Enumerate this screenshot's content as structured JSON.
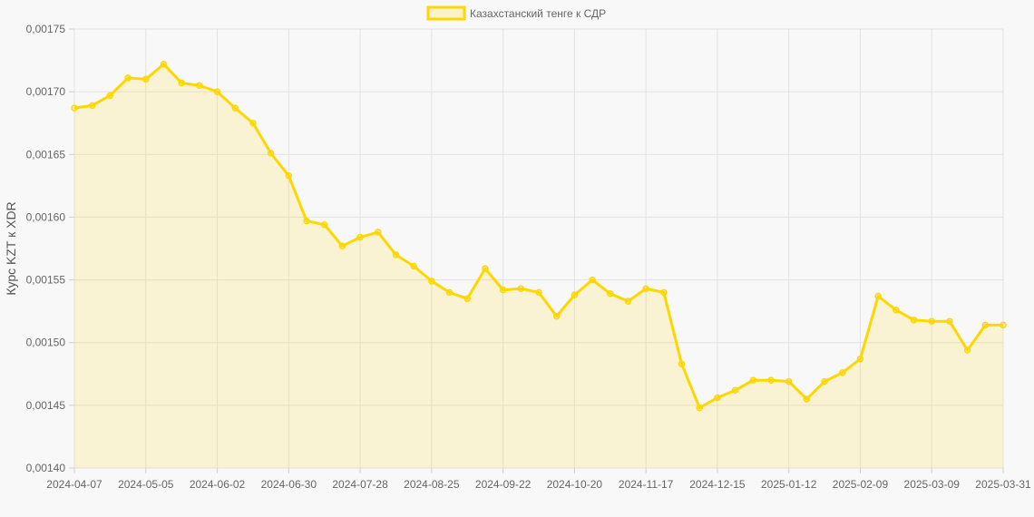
{
  "chart_data": {
    "type": "area",
    "title": "",
    "xlabel": "",
    "ylabel": "Курс KZT к XDR",
    "ylim": [
      0.0014,
      0.00175
    ],
    "yticks": [
      "0,00140",
      "0,00145",
      "0,00150",
      "0,00155",
      "0,00160",
      "0,00165",
      "0,00170",
      "0,00175"
    ],
    "xticks": [
      "2024-04-07",
      "2024-05-05",
      "2024-06-02",
      "2024-06-30",
      "2024-07-28",
      "2024-08-25",
      "2024-09-22",
      "2024-10-20",
      "2024-11-17",
      "2024-12-15",
      "2025-01-12",
      "2025-02-09",
      "2025-03-09",
      "2025-03-31"
    ],
    "grid": true,
    "legend": "top-center",
    "series": [
      {
        "name": "Казахстанский тенге к СДР",
        "color": "#FFD700",
        "values": [
          0.001687,
          0.001689,
          0.001697,
          0.001711,
          0.00171,
          0.001722,
          0.001707,
          0.001705,
          0.0017,
          0.001687,
          0.001675,
          0.001651,
          0.001633,
          0.001597,
          0.001594,
          0.001577,
          0.001584,
          0.001588,
          0.00157,
          0.001561,
          0.001549,
          0.00154,
          0.001535,
          0.001559,
          0.001542,
          0.001543,
          0.00154,
          0.001521,
          0.001538,
          0.00155,
          0.001539,
          0.001533,
          0.001543,
          0.00154,
          0.001483,
          0.001448,
          0.001456,
          0.001462,
          0.00147,
          0.00147,
          0.001469,
          0.001455,
          0.001469,
          0.001476,
          0.001487,
          0.001537,
          0.001526,
          0.001518,
          0.001517,
          0.001517,
          0.001494,
          0.001514,
          0.001514
        ]
      }
    ]
  }
}
